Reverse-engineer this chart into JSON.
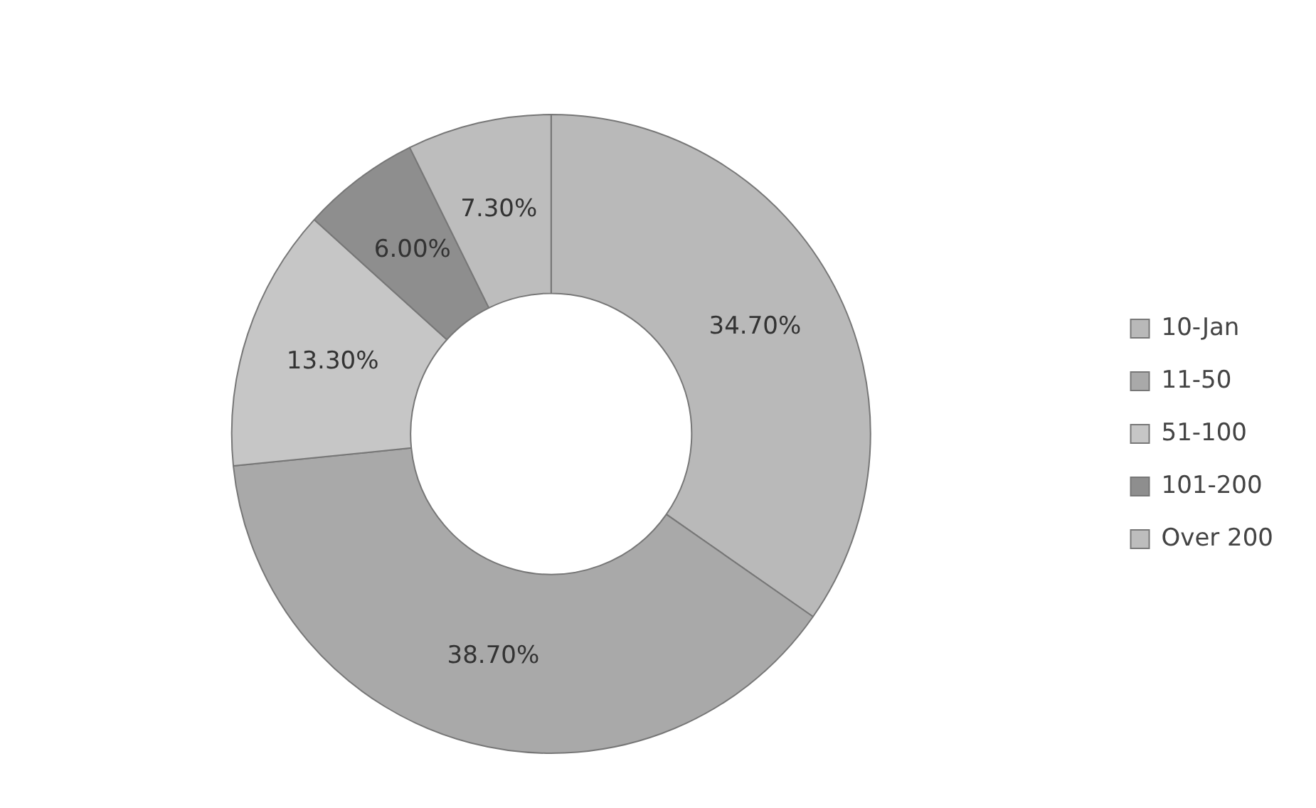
{
  "chart_data": {
    "type": "donut",
    "categories": [
      "10-Jan",
      "11-50",
      "51-100",
      "101-200",
      "Over 200"
    ],
    "values": [
      34.7,
      38.7,
      13.3,
      6.0,
      7.3
    ],
    "value_labels": [
      "34.70%",
      "38.70%",
      "13.30%",
      "6.00%",
      "7.30%"
    ],
    "colors": [
      "#b9b9b9",
      "#a9a9a9",
      "#c6c6c6",
      "#8e8e8e",
      "#bdbdbd"
    ],
    "legend": "right"
  }
}
